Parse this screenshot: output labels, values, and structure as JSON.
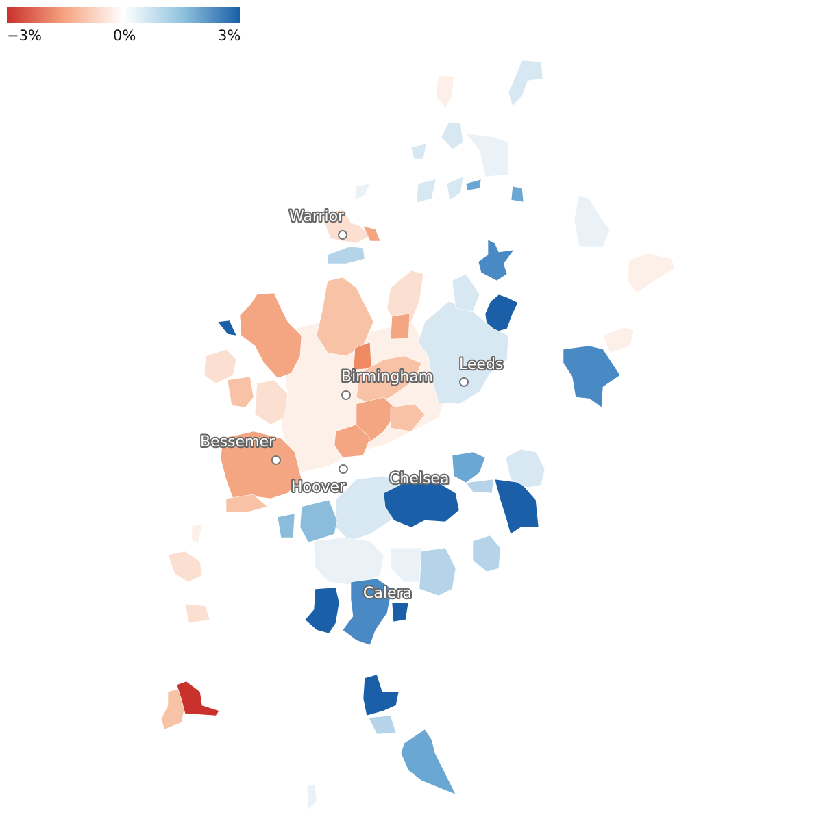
{
  "legend": {
    "min_label": "−3%",
    "mid_label": "0%",
    "max_label": "3%",
    "colors": [
      "#c9312c",
      "#f6a582",
      "#ffffff",
      "#92c4df",
      "#1a5fa8"
    ]
  },
  "cities": [
    {
      "name": "Warrior"
    },
    {
      "name": "Birmingham"
    },
    {
      "name": "Leeds"
    },
    {
      "name": "Bessemer"
    },
    {
      "name": "Hoover"
    },
    {
      "name": "Chelsea"
    },
    {
      "name": "Calera"
    }
  ],
  "palette": {
    "neg3": "#c9312c",
    "neg2": "#ef8a62",
    "neg15": "#f4a582",
    "neg1": "#f8c2a6",
    "neg05": "#fbe0d2",
    "neg02": "#fdf0e8",
    "zero": "#f7f7f7",
    "pos02": "#eaf2f8",
    "pos05": "#d8e8f3",
    "pos1": "#b5d4e9",
    "pos15": "#8cbcdc",
    "pos2": "#6aa8d3",
    "pos25": "#4a8ac4",
    "pos3": "#1a5fa8"
  }
}
